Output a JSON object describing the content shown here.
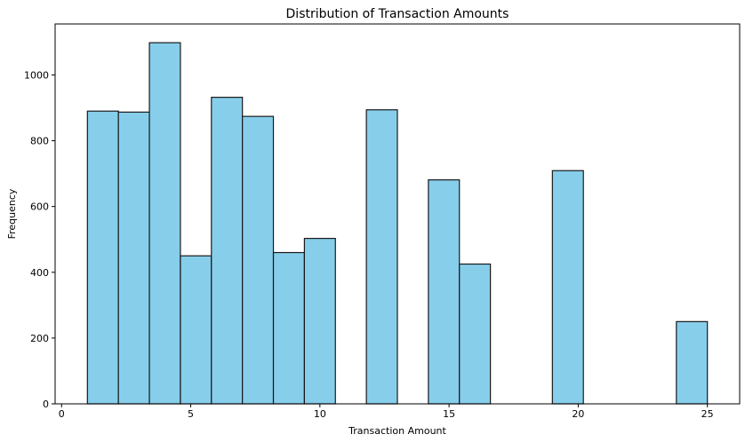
{
  "chart_data": {
    "type": "histogram",
    "title": "Distribution of Transaction Amounts",
    "xlabel": "Transaction Amount",
    "ylabel": "Frequency",
    "xlim": [
      -0.25,
      26.25
    ],
    "ylim": [
      0,
      1155
    ],
    "xticks": [
      0,
      5,
      10,
      15,
      20,
      25
    ],
    "yticks": [
      0,
      200,
      400,
      600,
      800,
      1000
    ],
    "bin_edges": [
      1.0,
      2.2,
      3.4,
      4.6,
      5.8,
      7.0,
      8.2,
      9.4,
      10.6,
      11.8,
      13.0,
      14.2,
      15.4,
      16.6,
      17.8,
      19.0,
      20.2,
      21.4,
      22.6,
      23.8,
      25.0
    ],
    "counts": [
      890,
      887,
      1098,
      450,
      932,
      874,
      460,
      503,
      0,
      894,
      0,
      681,
      425,
      0,
      0,
      709,
      0,
      0,
      0,
      250
    ],
    "colors": {
      "bar_fill": "#87CEEB",
      "bar_edge": "#1a1a1a",
      "axis": "#000000"
    }
  }
}
